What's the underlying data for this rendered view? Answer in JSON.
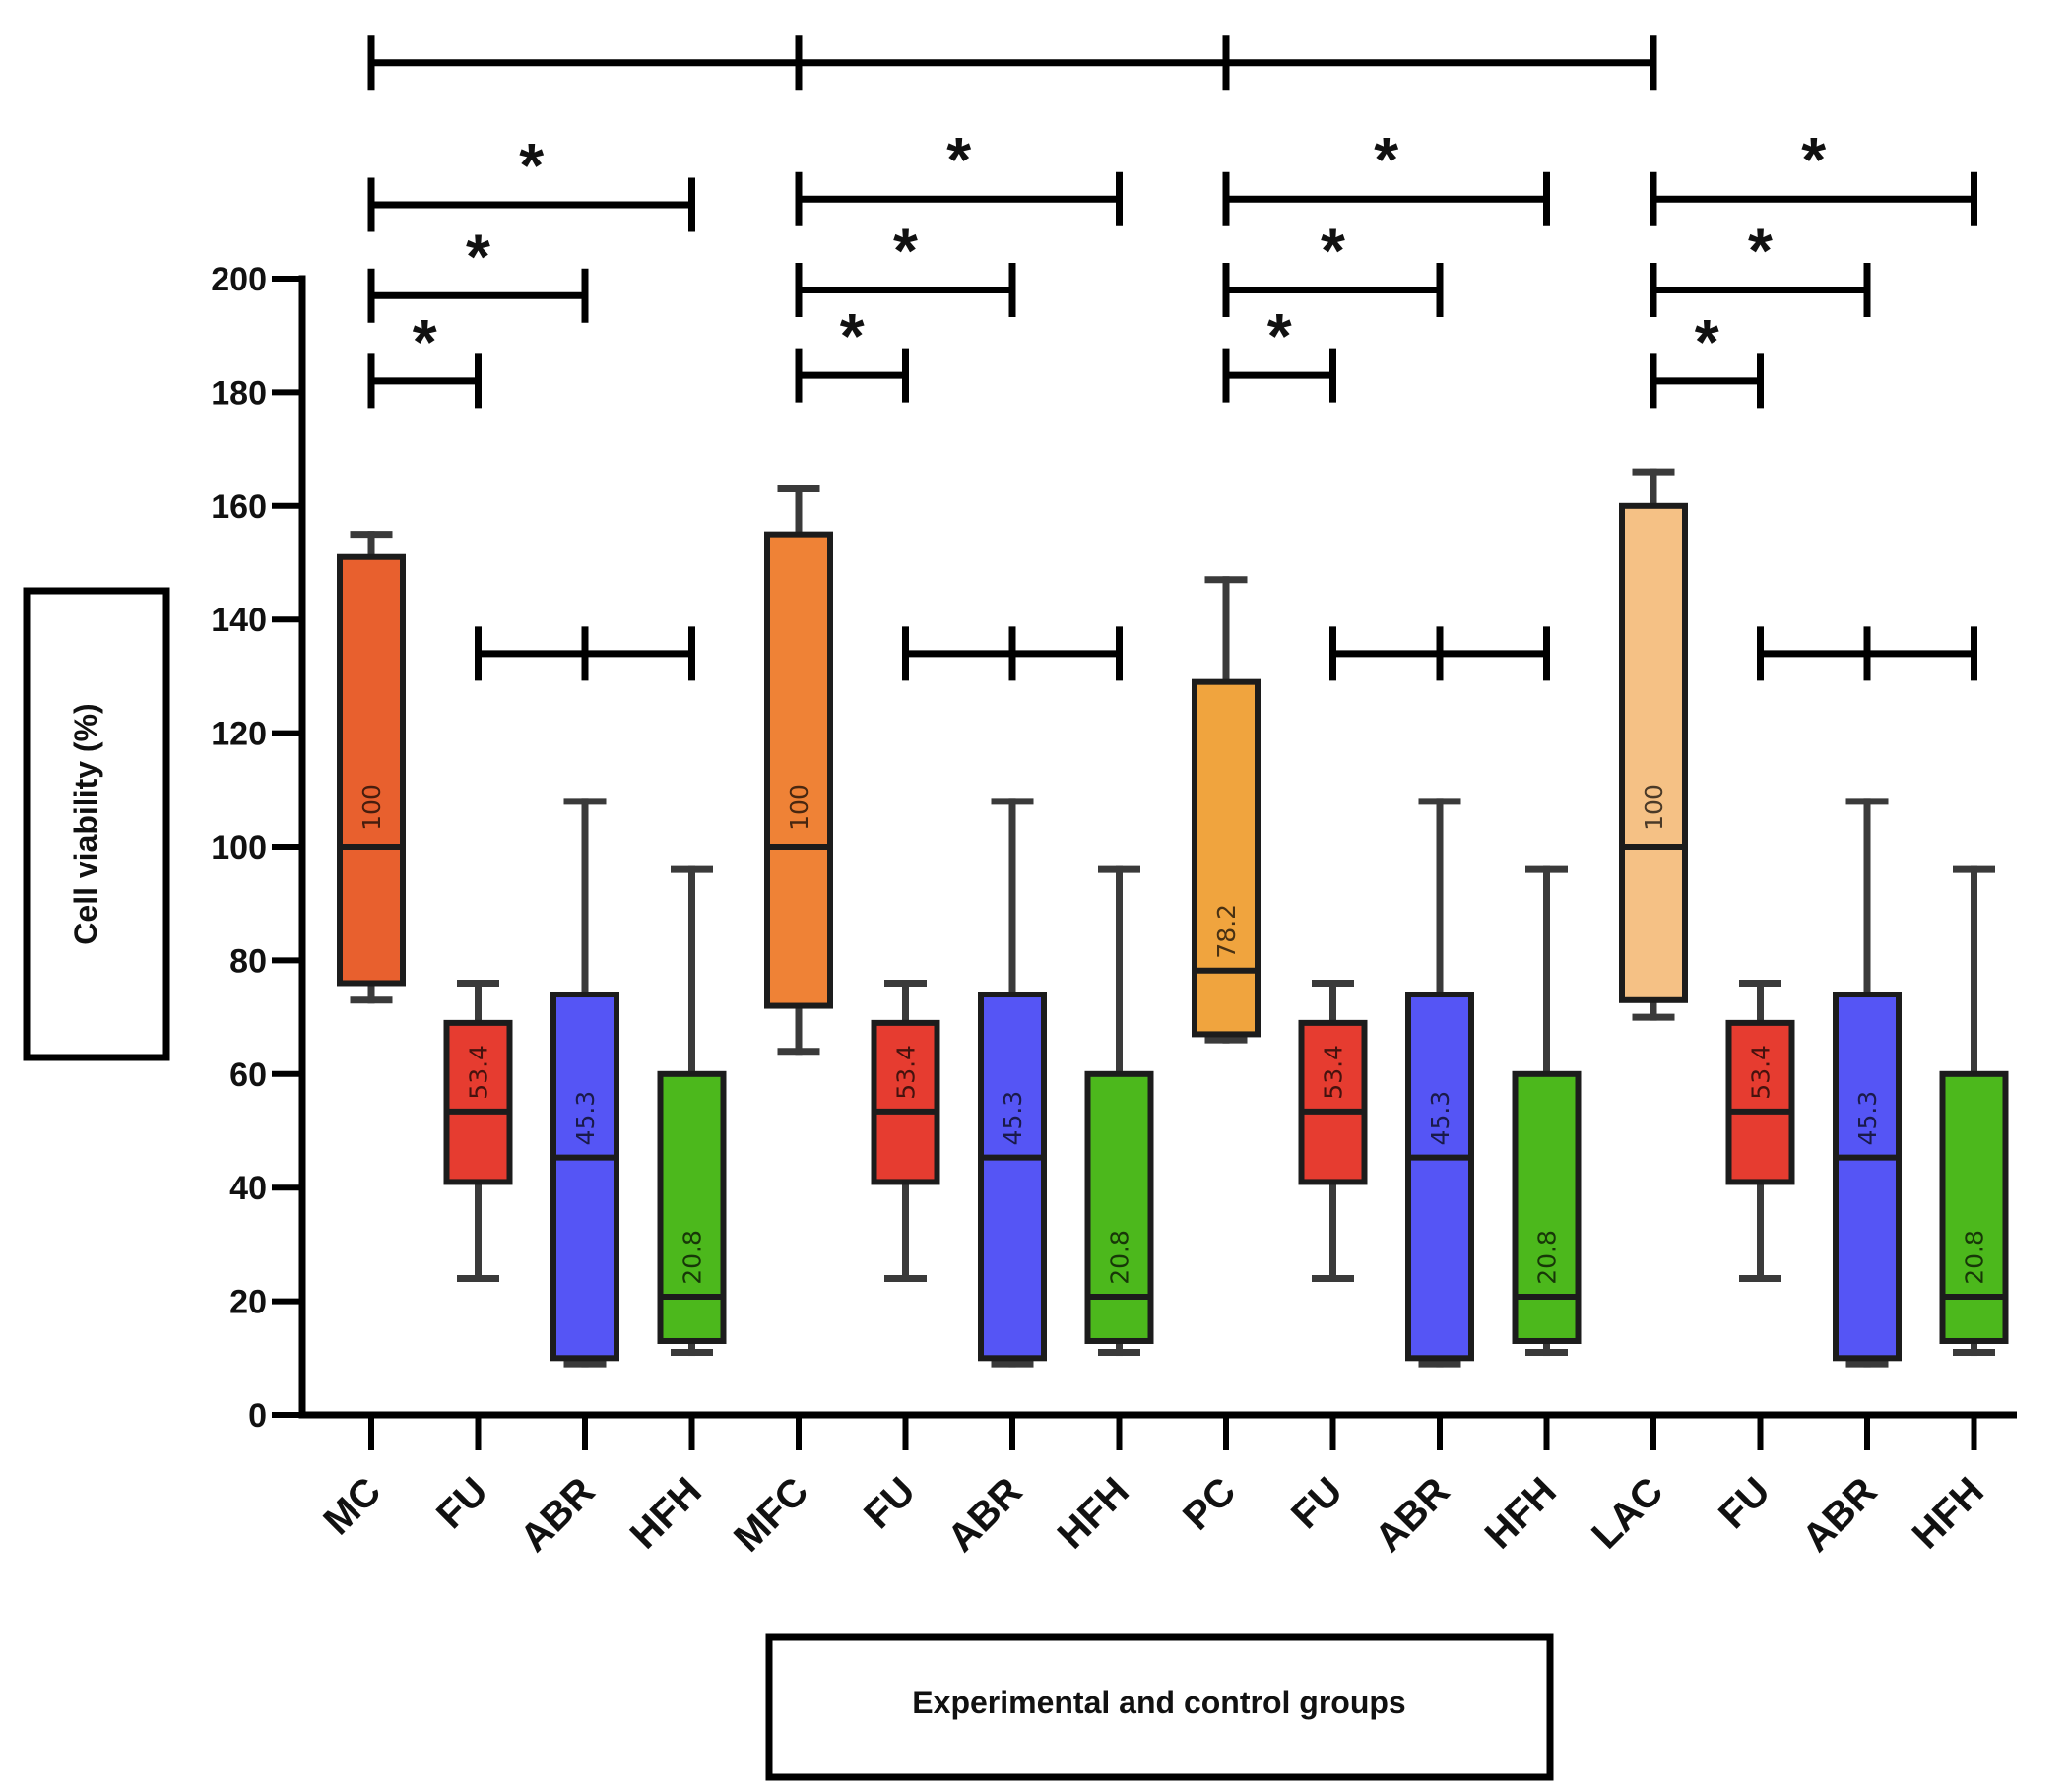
{
  "chart_data": {
    "type": "box",
    "ylabel": "Cell viability (%)",
    "xlabel": "Experimental and control groups",
    "ylim": [
      0,
      200
    ],
    "yticks": [
      0,
      20,
      40,
      60,
      80,
      100,
      120,
      140,
      160,
      180,
      200
    ],
    "significance_marker": "*",
    "categories": [
      "MC",
      "FU",
      "ABR",
      "HFH",
      "MFC",
      "FU",
      "ABR",
      "HFH",
      "PC",
      "FU",
      "ABR",
      "HFH",
      "LAC",
      "FU",
      "ABR",
      "HFH"
    ],
    "groups": [
      {
        "label": "MC",
        "whisker_low": 73,
        "q1": 76,
        "median": 100,
        "q3": 151,
        "whisker_high": 155,
        "median_label": "100",
        "color": "#e8602e"
      },
      {
        "label": "FU",
        "whisker_low": 24,
        "q1": 41,
        "median": 53.4,
        "q3": 69,
        "whisker_high": 76,
        "median_label": "53.4",
        "color": "#e63c30"
      },
      {
        "label": "ABR",
        "whisker_low": 9,
        "q1": 10,
        "median": 45.3,
        "q3": 74,
        "whisker_high": 108,
        "median_label": "45.3",
        "color": "#5555f5"
      },
      {
        "label": "HFH",
        "whisker_low": 11,
        "q1": 13,
        "median": 20.8,
        "q3": 60,
        "whisker_high": 96,
        "median_label": "20.8",
        "color": "#4cb81c"
      },
      {
        "label": "MFC",
        "whisker_low": 64,
        "q1": 72,
        "median": 100,
        "q3": 155,
        "whisker_high": 163,
        "median_label": "100",
        "color": "#ef8236"
      },
      {
        "label": "FU",
        "whisker_low": 24,
        "q1": 41,
        "median": 53.4,
        "q3": 69,
        "whisker_high": 76,
        "median_label": "53.4",
        "color": "#e63c30"
      },
      {
        "label": "ABR",
        "whisker_low": 9,
        "q1": 10,
        "median": 45.3,
        "q3": 74,
        "whisker_high": 108,
        "median_label": "45.3",
        "color": "#5555f5"
      },
      {
        "label": "HFH",
        "whisker_low": 11,
        "q1": 13,
        "median": 20.8,
        "q3": 60,
        "whisker_high": 96,
        "median_label": "20.8",
        "color": "#4cb81c"
      },
      {
        "label": "PC",
        "whisker_low": 66,
        "q1": 67,
        "median": 78.2,
        "q3": 129,
        "whisker_high": 147,
        "median_label": "78.2",
        "color": "#f0a43e"
      },
      {
        "label": "FU",
        "whisker_low": 24,
        "q1": 41,
        "median": 53.4,
        "q3": 69,
        "whisker_high": 76,
        "median_label": "53.4",
        "color": "#e63c30"
      },
      {
        "label": "ABR",
        "whisker_low": 9,
        "q1": 10,
        "median": 45.3,
        "q3": 74,
        "whisker_high": 108,
        "median_label": "45.3",
        "color": "#5555f5"
      },
      {
        "label": "HFH",
        "whisker_low": 11,
        "q1": 13,
        "median": 20.8,
        "q3": 60,
        "whisker_high": 96,
        "median_label": "20.8",
        "color": "#4cb81c"
      },
      {
        "label": "LAC",
        "whisker_low": 70,
        "q1": 73,
        "median": 100,
        "q3": 160,
        "whisker_high": 166,
        "median_label": "100",
        "color": "#f5c185"
      },
      {
        "label": "FU",
        "whisker_low": 24,
        "q1": 41,
        "median": 53.4,
        "q3": 69,
        "whisker_high": 76,
        "median_label": "53.4",
        "color": "#e63c30"
      },
      {
        "label": "ABR",
        "whisker_low": 9,
        "q1": 10,
        "median": 45.3,
        "q3": 74,
        "whisker_high": 108,
        "median_label": "45.3",
        "color": "#5555f5"
      },
      {
        "label": "HFH",
        "whisker_low": 11,
        "q1": 13,
        "median": 20.8,
        "q3": 60,
        "whisker_high": 96,
        "median_label": "20.8",
        "color": "#4cb81c"
      }
    ],
    "comparisons": [
      {
        "from": 0,
        "to": 1,
        "level": 182,
        "marker": "*"
      },
      {
        "from": 0,
        "to": 2,
        "level": 197,
        "marker": "*"
      },
      {
        "from": 0,
        "to": 3,
        "level": 213,
        "marker": "*"
      },
      {
        "from": 4,
        "to": 5,
        "level": 183,
        "marker": "*"
      },
      {
        "from": 4,
        "to": 6,
        "level": 198,
        "marker": "*"
      },
      {
        "from": 4,
        "to": 7,
        "level": 214,
        "marker": "*"
      },
      {
        "from": 8,
        "to": 9,
        "level": 183,
        "marker": "*"
      },
      {
        "from": 8,
        "to": 10,
        "level": 198,
        "marker": "*"
      },
      {
        "from": 8,
        "to": 11,
        "level": 214,
        "marker": "*"
      },
      {
        "from": 12,
        "to": 13,
        "level": 182,
        "marker": "*"
      },
      {
        "from": 12,
        "to": 14,
        "level": 198,
        "marker": "*"
      },
      {
        "from": 12,
        "to": 15,
        "level": 214,
        "marker": "*"
      }
    ],
    "nonsignificant_brackets": [
      {
        "ticks": [
          1,
          2,
          3
        ],
        "level": 134
      },
      {
        "ticks": [
          5,
          6,
          7
        ],
        "level": 134
      },
      {
        "ticks": [
          9,
          10,
          11
        ],
        "level": 134
      },
      {
        "ticks": [
          13,
          14,
          15
        ],
        "level": 134
      },
      {
        "ticks": [
          0,
          4,
          8,
          12
        ],
        "level": 238
      }
    ]
  }
}
